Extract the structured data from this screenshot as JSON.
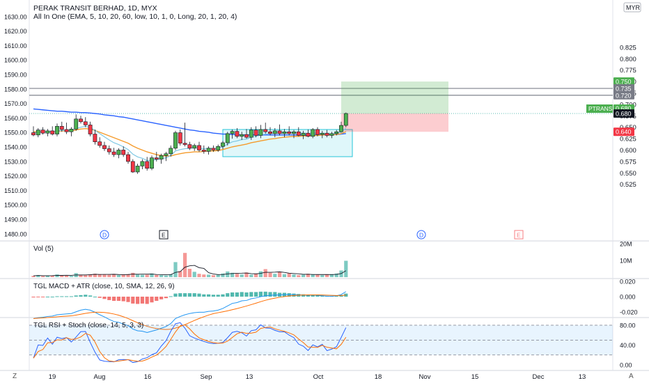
{
  "header": {
    "title": "PERAK TRANSIT BERHAD, 1D, MYX",
    "indicator": "All In One (EMA, 5, 10, 20, 60, low, 10, 1, 0, Long, 20, 1, 20, 4)",
    "currency": "MYR"
  },
  "panes": {
    "volume_label": "Vol (5)",
    "macd_label": "TGL MACD + ATR (close, 10, SMA, 12, 26, 9)",
    "rsi_label": "TGL RSI + Stoch (close, 14, 5, 3, 3)"
  },
  "corners": {
    "left": "Z",
    "right": "A"
  },
  "colors": {
    "up": "#26a69a",
    "down": "#ef5350",
    "ema5": "#26a69a",
    "ema10": "#7ec8e3",
    "ema20": "#f59b2b",
    "ema60": "#2962ff",
    "accent_green": "#4caf50",
    "accent_red": "#f23645"
  },
  "chart_data": {
    "type": "candlestick",
    "left_axis": {
      "ticks": [
        "1630.00",
        "1620.00",
        "1610.00",
        "1600.00",
        "1590.00",
        "1580.00",
        "1570.00",
        "1560.00",
        "1550.00",
        "1540.00",
        "1530.00",
        "1520.00",
        "1510.00",
        "1500.00",
        "1490.00",
        "1480.00"
      ],
      "range": [
        1477,
        1636
      ]
    },
    "right_axis": {
      "ticks": [
        "0.825",
        "0.800",
        "0.775",
        "0.750",
        "0.725",
        "0.700",
        "0.675",
        "0.650",
        "0.625",
        "0.600",
        "0.575",
        "0.550",
        "0.525"
      ],
      "range": [
        0.517,
        0.828
      ]
    },
    "x_ticks": [
      "19",
      "Aug",
      "16",
      "Sep",
      "13",
      "Oct",
      "18",
      "Nov",
      "15",
      "Dec",
      "13"
    ],
    "candles": [
      {
        "o": 0.638,
        "h": 0.652,
        "l": 0.63,
        "c": 0.633
      },
      {
        "o": 0.633,
        "h": 0.648,
        "l": 0.628,
        "c": 0.644
      },
      {
        "o": 0.644,
        "h": 0.65,
        "l": 0.634,
        "c": 0.637
      },
      {
        "o": 0.637,
        "h": 0.646,
        "l": 0.63,
        "c": 0.642
      },
      {
        "o": 0.642,
        "h": 0.652,
        "l": 0.632,
        "c": 0.635
      },
      {
        "o": 0.635,
        "h": 0.658,
        "l": 0.63,
        "c": 0.652
      },
      {
        "o": 0.652,
        "h": 0.662,
        "l": 0.64,
        "c": 0.645
      },
      {
        "o": 0.645,
        "h": 0.66,
        "l": 0.635,
        "c": 0.64
      },
      {
        "o": 0.64,
        "h": 0.65,
        "l": 0.63,
        "c": 0.646
      },
      {
        "o": 0.646,
        "h": 0.678,
        "l": 0.642,
        "c": 0.668
      },
      {
        "o": 0.668,
        "h": 0.675,
        "l": 0.658,
        "c": 0.662
      },
      {
        "o": 0.662,
        "h": 0.672,
        "l": 0.65,
        "c": 0.655
      },
      {
        "o": 0.655,
        "h": 0.662,
        "l": 0.63,
        "c": 0.635
      },
      {
        "o": 0.635,
        "h": 0.645,
        "l": 0.612,
        "c": 0.618
      },
      {
        "o": 0.618,
        "h": 0.628,
        "l": 0.605,
        "c": 0.61
      },
      {
        "o": 0.61,
        "h": 0.618,
        "l": 0.598,
        "c": 0.603
      },
      {
        "o": 0.603,
        "h": 0.61,
        "l": 0.59,
        "c": 0.596
      },
      {
        "o": 0.596,
        "h": 0.605,
        "l": 0.585,
        "c": 0.59
      },
      {
        "o": 0.59,
        "h": 0.604,
        "l": 0.582,
        "c": 0.6
      },
      {
        "o": 0.6,
        "h": 0.608,
        "l": 0.585,
        "c": 0.59
      },
      {
        "o": 0.59,
        "h": 0.596,
        "l": 0.57,
        "c": 0.575
      },
      {
        "o": 0.575,
        "h": 0.58,
        "l": 0.55,
        "c": 0.552
      },
      {
        "o": 0.552,
        "h": 0.57,
        "l": 0.548,
        "c": 0.565
      },
      {
        "o": 0.565,
        "h": 0.58,
        "l": 0.558,
        "c": 0.575
      },
      {
        "o": 0.575,
        "h": 0.585,
        "l": 0.555,
        "c": 0.56
      },
      {
        "o": 0.56,
        "h": 0.588,
        "l": 0.556,
        "c": 0.583
      },
      {
        "o": 0.583,
        "h": 0.596,
        "l": 0.575,
        "c": 0.58
      },
      {
        "o": 0.58,
        "h": 0.592,
        "l": 0.57,
        "c": 0.588
      },
      {
        "o": 0.588,
        "h": 0.596,
        "l": 0.576,
        "c": 0.592
      },
      {
        "o": 0.592,
        "h": 0.61,
        "l": 0.586,
        "c": 0.604
      },
      {
        "o": 0.604,
        "h": 0.642,
        "l": 0.6,
        "c": 0.638
      },
      {
        "o": 0.638,
        "h": 0.645,
        "l": 0.61,
        "c": 0.615
      },
      {
        "o": 0.615,
        "h": 0.66,
        "l": 0.608,
        "c": 0.612
      },
      {
        "o": 0.612,
        "h": 0.618,
        "l": 0.6,
        "c": 0.604
      },
      {
        "o": 0.604,
        "h": 0.614,
        "l": 0.598,
        "c": 0.61
      },
      {
        "o": 0.61,
        "h": 0.618,
        "l": 0.596,
        "c": 0.6
      },
      {
        "o": 0.6,
        "h": 0.61,
        "l": 0.592,
        "c": 0.597
      },
      {
        "o": 0.597,
        "h": 0.608,
        "l": 0.59,
        "c": 0.604
      },
      {
        "o": 0.604,
        "h": 0.61,
        "l": 0.596,
        "c": 0.6
      },
      {
        "o": 0.6,
        "h": 0.612,
        "l": 0.596,
        "c": 0.608
      },
      {
        "o": 0.608,
        "h": 0.62,
        "l": 0.602,
        "c": 0.616
      },
      {
        "o": 0.616,
        "h": 0.64,
        "l": 0.61,
        "c": 0.636
      },
      {
        "o": 0.636,
        "h": 0.645,
        "l": 0.625,
        "c": 0.641
      },
      {
        "o": 0.641,
        "h": 0.648,
        "l": 0.626,
        "c": 0.63
      },
      {
        "o": 0.63,
        "h": 0.64,
        "l": 0.622,
        "c": 0.634
      },
      {
        "o": 0.634,
        "h": 0.646,
        "l": 0.625,
        "c": 0.628
      },
      {
        "o": 0.628,
        "h": 0.65,
        "l": 0.622,
        "c": 0.644
      },
      {
        "o": 0.644,
        "h": 0.652,
        "l": 0.628,
        "c": 0.632
      },
      {
        "o": 0.632,
        "h": 0.655,
        "l": 0.626,
        "c": 0.645
      },
      {
        "o": 0.645,
        "h": 0.66,
        "l": 0.636,
        "c": 0.64
      },
      {
        "o": 0.64,
        "h": 0.65,
        "l": 0.632,
        "c": 0.636
      },
      {
        "o": 0.636,
        "h": 0.648,
        "l": 0.628,
        "c": 0.642
      },
      {
        "o": 0.642,
        "h": 0.656,
        "l": 0.632,
        "c": 0.636
      },
      {
        "o": 0.636,
        "h": 0.646,
        "l": 0.628,
        "c": 0.64
      },
      {
        "o": 0.64,
        "h": 0.652,
        "l": 0.632,
        "c": 0.636
      },
      {
        "o": 0.636,
        "h": 0.644,
        "l": 0.626,
        "c": 0.64
      },
      {
        "o": 0.64,
        "h": 0.65,
        "l": 0.63,
        "c": 0.632
      },
      {
        "o": 0.632,
        "h": 0.642,
        "l": 0.624,
        "c": 0.637
      },
      {
        "o": 0.637,
        "h": 0.645,
        "l": 0.628,
        "c": 0.63
      },
      {
        "o": 0.63,
        "h": 0.648,
        "l": 0.626,
        "c": 0.645
      },
      {
        "o": 0.645,
        "h": 0.65,
        "l": 0.63,
        "c": 0.634
      },
      {
        "o": 0.634,
        "h": 0.642,
        "l": 0.626,
        "c": 0.637
      },
      {
        "o": 0.637,
        "h": 0.644,
        "l": 0.628,
        "c": 0.632
      },
      {
        "o": 0.632,
        "h": 0.64,
        "l": 0.626,
        "c": 0.636
      },
      {
        "o": 0.636,
        "h": 0.644,
        "l": 0.632,
        "c": 0.64
      },
      {
        "o": 0.64,
        "h": 0.662,
        "l": 0.638,
        "c": 0.654
      },
      {
        "o": 0.654,
        "h": 0.682,
        "l": 0.65,
        "c": 0.68
      }
    ],
    "ema60": [
      0.69,
      0.689,
      0.688,
      0.687,
      0.686,
      0.685,
      0.685,
      0.684,
      0.683,
      0.683,
      0.682,
      0.682,
      0.681,
      0.68,
      0.679,
      0.677,
      0.676,
      0.675,
      0.673,
      0.672,
      0.67,
      0.668,
      0.666,
      0.664,
      0.662,
      0.66,
      0.658,
      0.656,
      0.654,
      0.652,
      0.65,
      0.648,
      0.646,
      0.644,
      0.643,
      0.641,
      0.64,
      0.639,
      0.637,
      0.636,
      0.635,
      0.635,
      0.634,
      0.634,
      0.633,
      0.633,
      0.633,
      0.633,
      0.633,
      0.633,
      0.633,
      0.633,
      0.633,
      0.633,
      0.633,
      0.633,
      0.633,
      0.633,
      0.633,
      0.633,
      0.634,
      0.634,
      0.634,
      0.634,
      0.634,
      0.635,
      0.636
    ],
    "ema20": [
      0.64,
      0.64,
      0.64,
      0.64,
      0.64,
      0.641,
      0.642,
      0.642,
      0.642,
      0.644,
      0.646,
      0.647,
      0.646,
      0.643,
      0.639,
      0.635,
      0.631,
      0.627,
      0.623,
      0.619,
      0.615,
      0.609,
      0.604,
      0.6,
      0.596,
      0.593,
      0.59,
      0.588,
      0.587,
      0.587,
      0.59,
      0.592,
      0.594,
      0.595,
      0.596,
      0.596,
      0.597,
      0.598,
      0.598,
      0.599,
      0.601,
      0.604,
      0.607,
      0.609,
      0.611,
      0.613,
      0.616,
      0.618,
      0.62,
      0.622,
      0.624,
      0.625,
      0.627,
      0.628,
      0.629,
      0.63,
      0.63,
      0.631,
      0.631,
      0.632,
      0.632,
      0.633,
      0.633,
      0.633,
      0.634,
      0.636,
      0.64
    ],
    "ema10": [
      0.638,
      0.639,
      0.639,
      0.64,
      0.64,
      0.642,
      0.643,
      0.643,
      0.643,
      0.647,
      0.65,
      0.652,
      0.649,
      0.643,
      0.636,
      0.629,
      0.622,
      0.616,
      0.612,
      0.607,
      0.601,
      0.591,
      0.585,
      0.582,
      0.577,
      0.578,
      0.579,
      0.581,
      0.583,
      0.588,
      0.598,
      0.601,
      0.603,
      0.604,
      0.605,
      0.604,
      0.603,
      0.604,
      0.603,
      0.604,
      0.607,
      0.613,
      0.618,
      0.62,
      0.623,
      0.624,
      0.628,
      0.63,
      0.633,
      0.635,
      0.636,
      0.637,
      0.637,
      0.638,
      0.638,
      0.638,
      0.637,
      0.637,
      0.636,
      0.637,
      0.637,
      0.636,
      0.635,
      0.635,
      0.636,
      0.64,
      0.648
    ],
    "volume": [
      0.8,
      1.2,
      0.6,
      0.9,
      1.0,
      1.6,
      1.1,
      0.9,
      0.7,
      2.4,
      1.4,
      1.2,
      1.6,
      2.0,
      1.8,
      1.5,
      1.4,
      1.9,
      1.2,
      1.5,
      1.8,
      2.6,
      1.6,
      1.4,
      1.5,
      2.2,
      1.3,
      1.2,
      1.0,
      1.8,
      9.0,
      3.6,
      14.5,
      5.0,
      3.2,
      2.0,
      1.6,
      1.5,
      1.2,
      1.4,
      2.2,
      3.4,
      2.6,
      2.0,
      1.6,
      2.8,
      1.5,
      2.0,
      3.5,
      4.8,
      2.6,
      2.0,
      3.0,
      1.8,
      2.4,
      1.6,
      1.2,
      1.5,
      2.0,
      1.7,
      1.4,
      1.2,
      1.5,
      1.8,
      2.2,
      4.0,
      9.8
    ],
    "volume_ticks": [
      "20M",
      "10M"
    ],
    "macd_ticks": [
      "0.020",
      "0.000",
      "-0.020"
    ],
    "rsi_ticks": [
      "80.00",
      "40.00",
      "0.00"
    ],
    "positions": {
      "long_target": "0.750",
      "long_entry": "0.680",
      "long_stop": "0.640"
    },
    "hlines": [
      0.735,
      0.72
    ],
    "price_badges": [
      {
        "value": "0.750",
        "color": "#4caf50"
      },
      {
        "value": "0.735",
        "color": "#787b86"
      },
      {
        "value": "0.720",
        "color": "#787b86"
      },
      {
        "value": "0.680",
        "color": "#4caf50",
        "tag": "PTRANS"
      },
      {
        "value": "0.680",
        "color": "#131722"
      },
      {
        "value": "0.640",
        "color": "#f23645"
      }
    ],
    "events": [
      "D",
      "E",
      "D",
      "E"
    ]
  }
}
